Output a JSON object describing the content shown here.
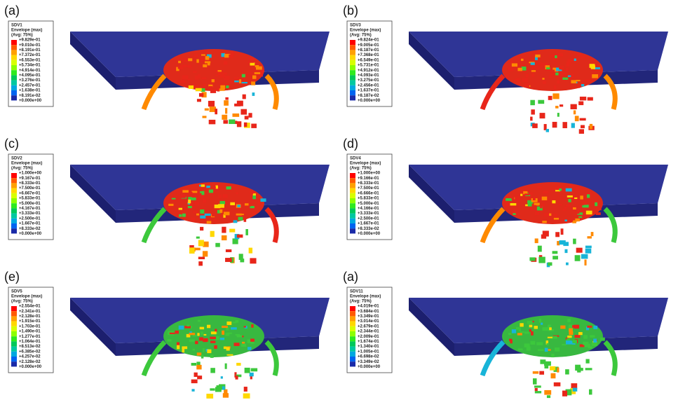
{
  "panels": [
    {
      "label": "(a)",
      "legend": {
        "title": "SDV1",
        "subtitle": "Envelope (max)",
        "note": "(Avg: 75%)",
        "values": [
          "+9.829e-01",
          "+9.010e-01",
          "+8.191e-01",
          "+7.372e-01",
          "+6.553e-01",
          "+5.734e-01",
          "+4.914e-01",
          "+4.095e-01",
          "+3.276e-01",
          "+2.457e-01",
          "+1.638e-01",
          "+8.191e-02",
          "+0.000e+00"
        ]
      }
    },
    {
      "label": "(b)",
      "legend": {
        "title": "SDV3",
        "subtitle": "Envelope (max)",
        "note": "(Avg: 75%)",
        "values": [
          "+9.824e-01",
          "+9.005e-01",
          "+8.187e-01",
          "+7.368e-01",
          "+6.549e-01",
          "+5.731e-01",
          "+4.912e-01",
          "+4.093e-01",
          "+3.275e-01",
          "+2.456e-01",
          "+1.637e-01",
          "+8.187e-02",
          "+0.000e+00"
        ]
      }
    },
    {
      "label": "(c)",
      "legend": {
        "title": "SDV2",
        "subtitle": "Envelope (max)",
        "note": "(Avg: 75%)",
        "values": [
          "+1.000e+00",
          "+9.167e-01",
          "+8.333e-01",
          "+7.500e-01",
          "+6.667e-01",
          "+5.833e-01",
          "+5.000e-01",
          "+4.167e-01",
          "+3.333e-01",
          "+2.500e-01",
          "+1.667e-01",
          "+8.333e-02",
          "+0.000e+00"
        ]
      }
    },
    {
      "label": "(d)",
      "legend": {
        "title": "SDV4",
        "subtitle": "Envelope (max)",
        "note": "(Avg: 75%)",
        "values": [
          "+1.000e+00",
          "+9.166e-01",
          "+8.333e-01",
          "+7.500e-01",
          "+6.666e-01",
          "+5.833e-01",
          "+5.000e-01",
          "+4.166e-01",
          "+3.333e-01",
          "+2.500e-01",
          "+1.667e-01",
          "+8.333e-02",
          "+0.000e+00"
        ]
      }
    },
    {
      "label": "(e)",
      "legend": {
        "title": "SDV5",
        "subtitle": "Envelope (max)",
        "note": "(Avg: 75%)",
        "values": [
          "+2.554e-01",
          "+2.341e-01",
          "+2.128e-01",
          "+1.915e-01",
          "+1.703e-01",
          "+1.490e-01",
          "+1.277e-01",
          "+1.064e-01",
          "+8.513e-02",
          "+6.385e-02",
          "+4.257e-02",
          "+2.128e-02",
          "+0.000e+00"
        ]
      }
    },
    {
      "label": "(a)",
      "legend": {
        "title": "SDV11",
        "subtitle": "Envelope (max)",
        "note": "(Avg: 75%)",
        "values": [
          "+4.019e-01",
          "+3.684e-01",
          "+3.349e-01",
          "+3.014e-01",
          "+2.679e-01",
          "+2.344e-01",
          "+2.009e-01",
          "+1.674e-01",
          "+1.340e-01",
          "+1.005e-01",
          "+6.698e-02",
          "+3.349e-02",
          "+0.000e+00"
        ]
      }
    }
  ]
}
